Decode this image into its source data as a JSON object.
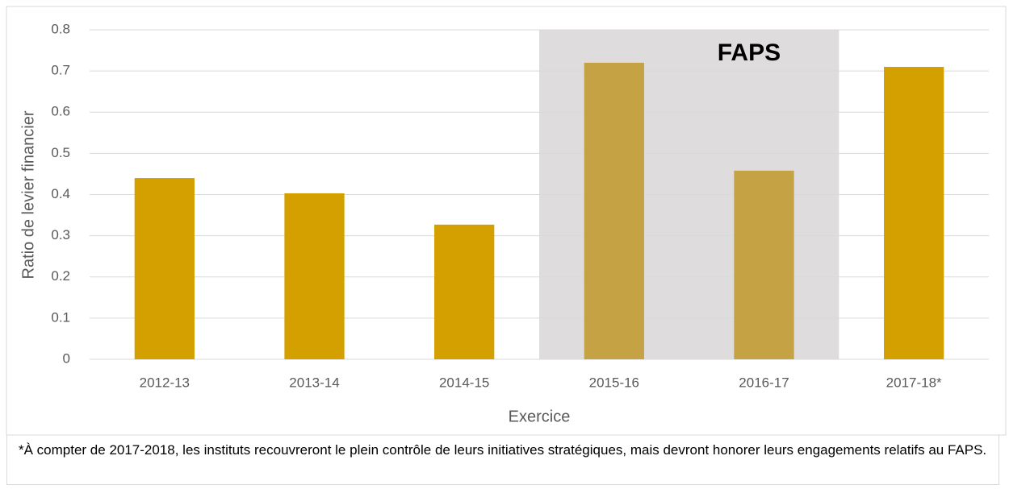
{
  "chart_data": {
    "type": "bar",
    "categories": [
      "2012-13",
      "2013-14",
      "2014-15",
      "2015-16",
      "2016-17",
      "2017-18*"
    ],
    "values": [
      0.44,
      0.403,
      0.327,
      0.72,
      0.458,
      0.71
    ],
    "color": "#d4a000",
    "ylim": [
      0,
      0.8
    ],
    "yticks": [
      0,
      0.1,
      0.2,
      0.3,
      0.4,
      0.5,
      0.6,
      0.7,
      0.8
    ],
    "grid": true,
    "y_label": "Ratio de levier financier",
    "x_label": "Exercice",
    "highlight": {
      "label": "FAPS",
      "start": "2015-16",
      "end": "2016-17",
      "color": "#dedcdc",
      "bar_color": "#c5a244"
    }
  },
  "footnote": "*À compter de 2017-2018, les instituts recouvreront le plein contrôle de leurs initiatives stratégiques, mais devront honorer leurs engagements relatifs au FAPS."
}
